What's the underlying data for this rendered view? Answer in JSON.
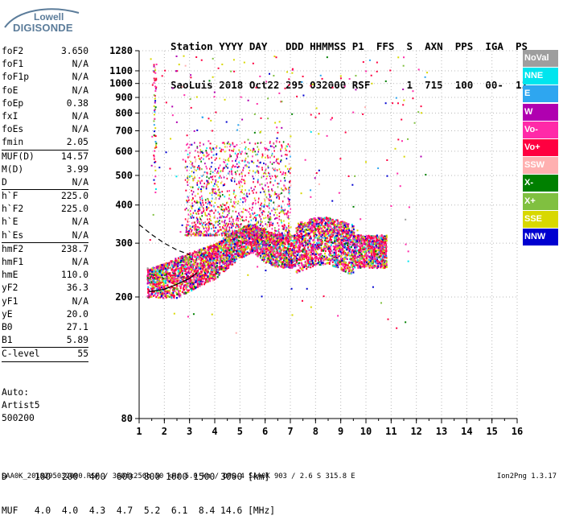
{
  "logo": {
    "line1": "Lowell",
    "line2": "DIGISONDE",
    "color": "#5b7c9a"
  },
  "header": {
    "line1": "Station YYYY DAY   DDD HHMMSS P1  FFS  S  AXN  PPS  IGA  PS",
    "line2": "SaoLuis 2018 Oct22 295 032000 RSF      1  715  100  00-  11"
  },
  "params": [
    {
      "name": "foF2",
      "value": "3.650"
    },
    {
      "name": "foF1",
      "value": "N/A"
    },
    {
      "name": "foF1p",
      "value": "N/A"
    },
    {
      "name": "foE",
      "value": "N/A"
    },
    {
      "name": "foEp",
      "value": "0.38"
    },
    {
      "name": "fxI",
      "value": "N/A"
    },
    {
      "name": "foEs",
      "value": "N/A"
    },
    {
      "name": "fmin",
      "value": "2.05"
    },
    {
      "sep": true
    },
    {
      "name": "MUF(D)",
      "value": "14.57"
    },
    {
      "name": "M(D)",
      "value": "3.99"
    },
    {
      "name": "D",
      "value": "N/A"
    },
    {
      "sep": true
    },
    {
      "name": "h`F",
      "value": "225.0"
    },
    {
      "name": "h`F2",
      "value": "225.0"
    },
    {
      "name": "h`E",
      "value": "N/A"
    },
    {
      "name": "h`Es",
      "value": "N/A"
    },
    {
      "sep": true
    },
    {
      "name": "hmF2",
      "value": "238.7"
    },
    {
      "name": "hmF1",
      "value": "N/A"
    },
    {
      "name": "hmE",
      "value": "110.0"
    },
    {
      "name": "yF2",
      "value": "36.3"
    },
    {
      "name": "yF1",
      "value": "N/A"
    },
    {
      "name": "yE",
      "value": "20.0"
    },
    {
      "name": "B0",
      "value": "27.1"
    },
    {
      "name": "B1",
      "value": "5.89"
    },
    {
      "sep": true
    },
    {
      "name": "C-level",
      "value": "55"
    },
    {
      "sep": true
    }
  ],
  "auto": {
    "line1": "Auto:",
    "line2": "Artist5",
    "line3": "500200"
  },
  "muf_table": {
    "d_label": "D",
    "d_values": "100  200  400  600  800 1000 1500 3000 [km]",
    "muf_label": "MUF",
    "muf_values": "4.0  4.0  4.3  4.7  5.2  6.1  8.4 14.6 [MHz]"
  },
  "footer": {
    "text": "SAA0K_2018295032000.RSF / 300fx256h 50 kHz 5.0 km / DPS-4 SAA0K 903 / 2.6 S 315.8 E",
    "version": "Ion2Png 1.3.17"
  },
  "legend": [
    {
      "label": "NoVal",
      "color": "#9e9e9e"
    },
    {
      "label": "NNE",
      "color": "#00e5ee"
    },
    {
      "label": "E",
      "color": "#2ea6f0"
    },
    {
      "label": "W",
      "color": "#b000b0"
    },
    {
      "label": "Vo-",
      "color": "#ff2aa8"
    },
    {
      "label": "Vo+",
      "color": "#ff0040"
    },
    {
      "label": "SSW",
      "color": "#ffb0b0"
    },
    {
      "label": "X-",
      "color": "#008000"
    },
    {
      "label": "X+",
      "color": "#80c040"
    },
    {
      "label": "SSE",
      "color": "#d8d800"
    },
    {
      "label": "NNW",
      "color": "#0000d0"
    }
  ],
  "chart_data": {
    "type": "scatter",
    "title": "",
    "xlabel": "",
    "ylabel": "",
    "xlim": [
      1,
      16
    ],
    "x_ticks": [
      "1",
      "2",
      "3",
      "4",
      "5",
      "6",
      "7",
      "8",
      "9",
      "10",
      "11",
      "12",
      "13",
      "14",
      "15",
      "16"
    ],
    "ylim": [
      80,
      1280
    ],
    "y_scale": "log",
    "y_ticks": [
      "80",
      "200",
      "300",
      "400",
      "500",
      "600",
      "700",
      "800",
      "900",
      "1000",
      "1100",
      "1280"
    ],
    "grid": "dotted",
    "legend_position": "right",
    "series": [
      {
        "name": "ionogram echoes",
        "description_points": [
          [
            1.5,
            230
          ],
          [
            2,
            240
          ],
          [
            2.5,
            250
          ],
          [
            3,
            260
          ],
          [
            3.5,
            270
          ],
          [
            4,
            280
          ],
          [
            4.5,
            300
          ],
          [
            5,
            320
          ],
          [
            5.5,
            330
          ],
          [
            6,
            310
          ],
          [
            6.5,
            300
          ],
          [
            7,
            300
          ],
          [
            7.5,
            310
          ],
          [
            8,
            320
          ],
          [
            8.5,
            320
          ],
          [
            9,
            310
          ],
          [
            9.5,
            300
          ],
          [
            10,
            300
          ]
        ]
      }
    ],
    "trace_lines": [
      {
        "style": "solid",
        "points": [
          [
            1.4,
            208
          ],
          [
            2,
            212
          ],
          [
            2.5,
            220
          ],
          [
            3,
            230
          ],
          [
            3.3,
            240
          ]
        ]
      },
      {
        "style": "dashed",
        "points": [
          [
            1,
            345
          ],
          [
            1.5,
            320
          ],
          [
            2,
            300
          ],
          [
            2.5,
            285
          ],
          [
            3,
            275
          ]
        ]
      }
    ]
  }
}
